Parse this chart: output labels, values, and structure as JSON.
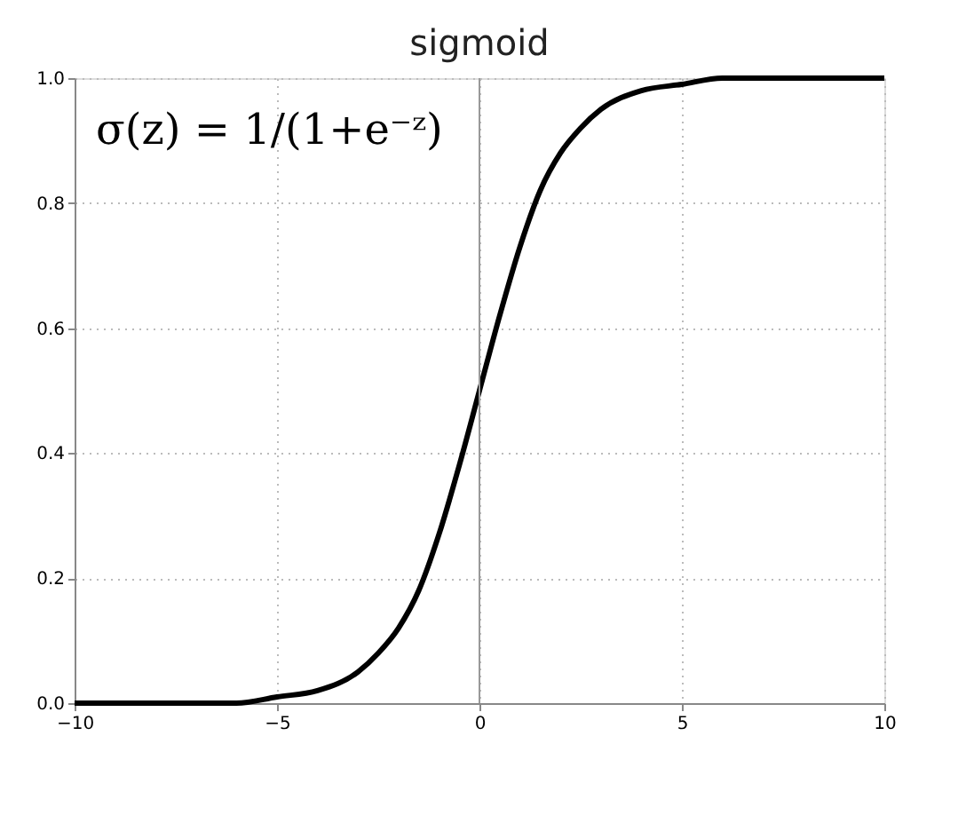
{
  "chart_data": {
    "type": "line",
    "title": "sigmoid",
    "x": [
      -10,
      -8,
      -6,
      -5,
      -4,
      -3,
      -2.5,
      -2,
      -1.5,
      -1,
      -0.5,
      0,
      0.5,
      1,
      1.5,
      2,
      2.5,
      3,
      4,
      5,
      6,
      8,
      10
    ],
    "series": [
      {
        "color": "#000000",
        "values": [
          0.0,
          0.0,
          0.0,
          0.01,
          0.02,
          0.05,
          0.08,
          0.12,
          0.18,
          0.27,
          0.38,
          0.5,
          0.62,
          0.73,
          0.82,
          0.88,
          0.92,
          0.95,
          0.98,
          0.99,
          1.0,
          1.0,
          1.0
        ]
      }
    ],
    "xlim": [
      -10,
      10
    ],
    "xticks": [
      -10,
      -5,
      0,
      5,
      10
    ],
    "ylim": [
      0,
      1
    ],
    "yticks": [
      {
        "value": 0,
        "label": "0.0"
      },
      {
        "value": 0.2,
        "label": "0.2"
      },
      {
        "value": 0.4,
        "label": "0.4"
      },
      {
        "value": 0.6,
        "label": "0.6"
      },
      {
        "value": 0.8,
        "label": "0.8"
      },
      {
        "value": 1,
        "label": "1.0"
      }
    ],
    "grid": true,
    "marker": "none",
    "line_style": "solid",
    "ref_lines": [
      {
        "axis": "x",
        "value": 0,
        "color": "#999999"
      }
    ],
    "annotations": [
      "σ(z) = 1/(1+e⁻ᶻ)"
    ]
  }
}
